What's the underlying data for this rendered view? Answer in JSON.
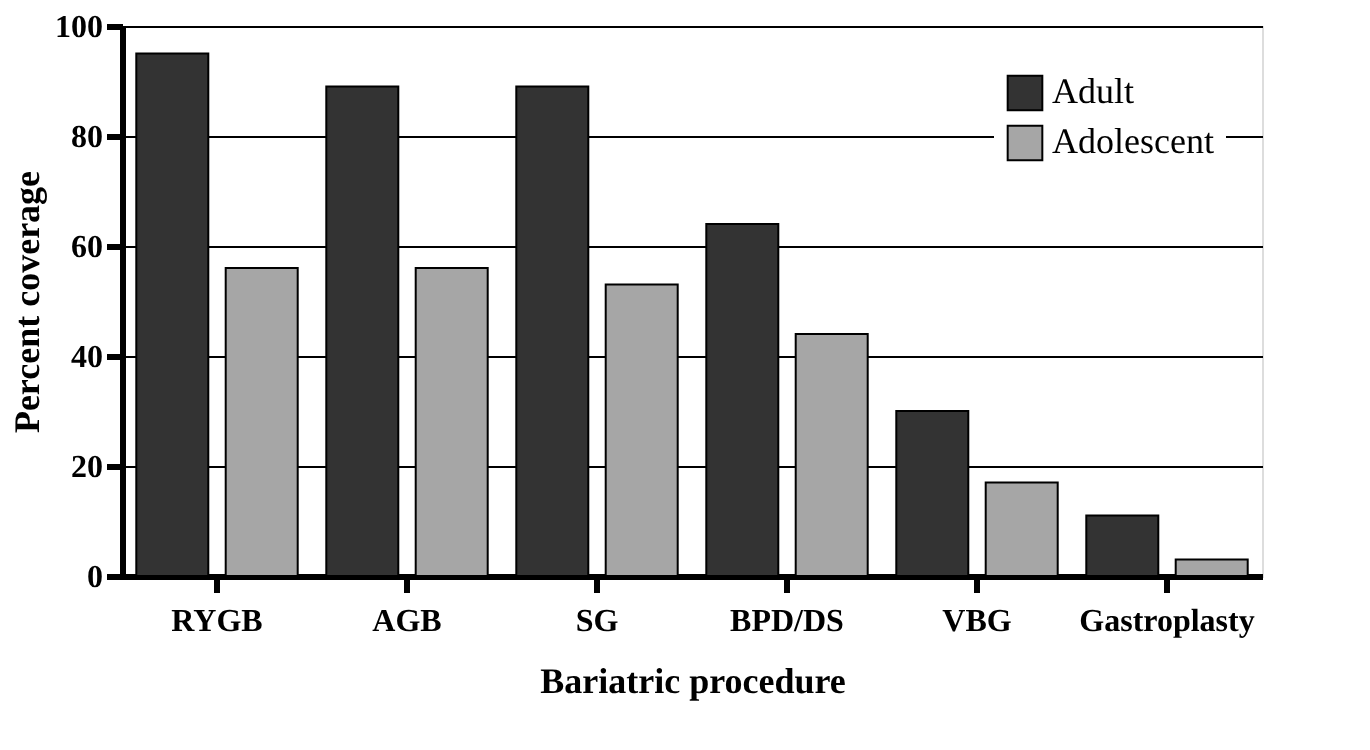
{
  "chart_data": {
    "type": "bar",
    "xlabel": "Bariatric procedure",
    "ylabel": "Percent coverage",
    "categories": [
      "RYGB",
      "AGB",
      "SG",
      "BPD/DS",
      "VBG",
      "Gastroplasty"
    ],
    "series": [
      {
        "name": "Adult",
        "color": "#333333",
        "values": [
          95,
          89,
          89,
          64,
          30,
          11
        ]
      },
      {
        "name": "Adolescent",
        "color": "#a6a6a6",
        "values": [
          56,
          56,
          53,
          44,
          17,
          3
        ]
      }
    ],
    "ylim": [
      0,
      100
    ],
    "yticks": [
      0,
      20,
      40,
      60,
      80,
      100
    ],
    "grid": "y",
    "legend": "top right"
  }
}
